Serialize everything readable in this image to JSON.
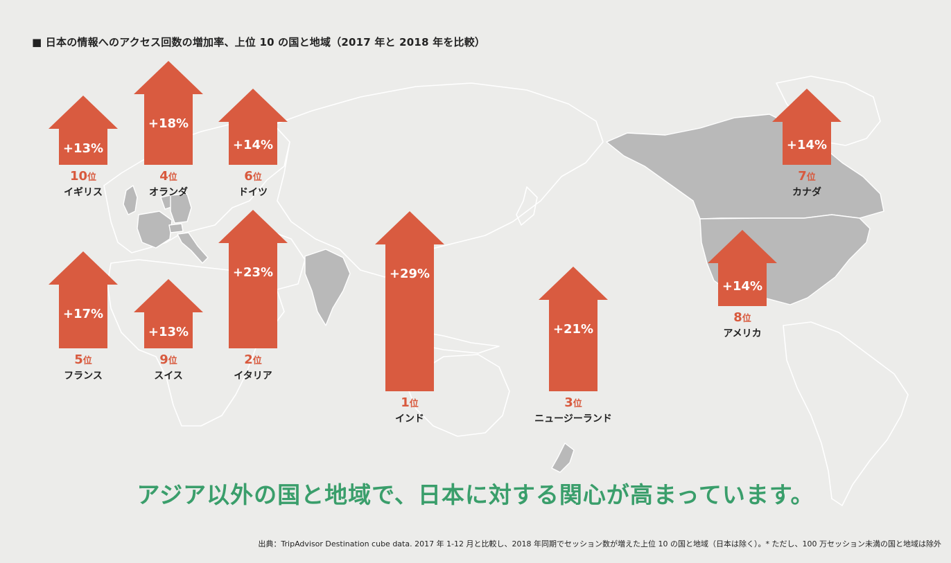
{
  "title": "■ 日本の情報へのアクセス回数の増加率、上位 10 の国と地域（2017 年と 2018 年を比較）",
  "tagline": "アジア以外の国と地域で、日本に対する関心が高まっています。",
  "source_note": "出典：TripAdvisor Destination cube data. 2017 年 1-12 月と比較し、2018 年同期でセッション数が増えた上位 10 の国と地域（日本は除く）。* ただし、100 万セッション未満の国と地域は除外",
  "colors": {
    "arrow": "#d95b40",
    "rank_text": "#d8593d",
    "tagline": "#3a9e6b",
    "highlighted_land": "#b9b9b9",
    "land_outline": "#ffffff",
    "background": "#ececea"
  },
  "chart_data": {
    "type": "bar",
    "title": "日本の情報へのアクセス回数の増加率、上位 10 の国と地域（2017 年と 2018 年を比較）",
    "unit": "%",
    "rank_suffix": "位",
    "categories": [
      "インド",
      "イタリア",
      "ニュージーランド",
      "オランダ",
      "フランス",
      "ドイツ",
      "カナダ",
      "アメリカ",
      "スイス",
      "イギリス"
    ],
    "ranks": [
      1,
      2,
      3,
      4,
      5,
      6,
      7,
      8,
      9,
      10
    ],
    "values": [
      29,
      23,
      21,
      18,
      17,
      14,
      14,
      14,
      13,
      13
    ],
    "value_labels": [
      "+29%",
      "+23%",
      "+21%",
      "+18%",
      "+17%",
      "+14%",
      "+14%",
      "+14%",
      "+13%",
      "+13%"
    ],
    "value_prefix": "+"
  }
}
